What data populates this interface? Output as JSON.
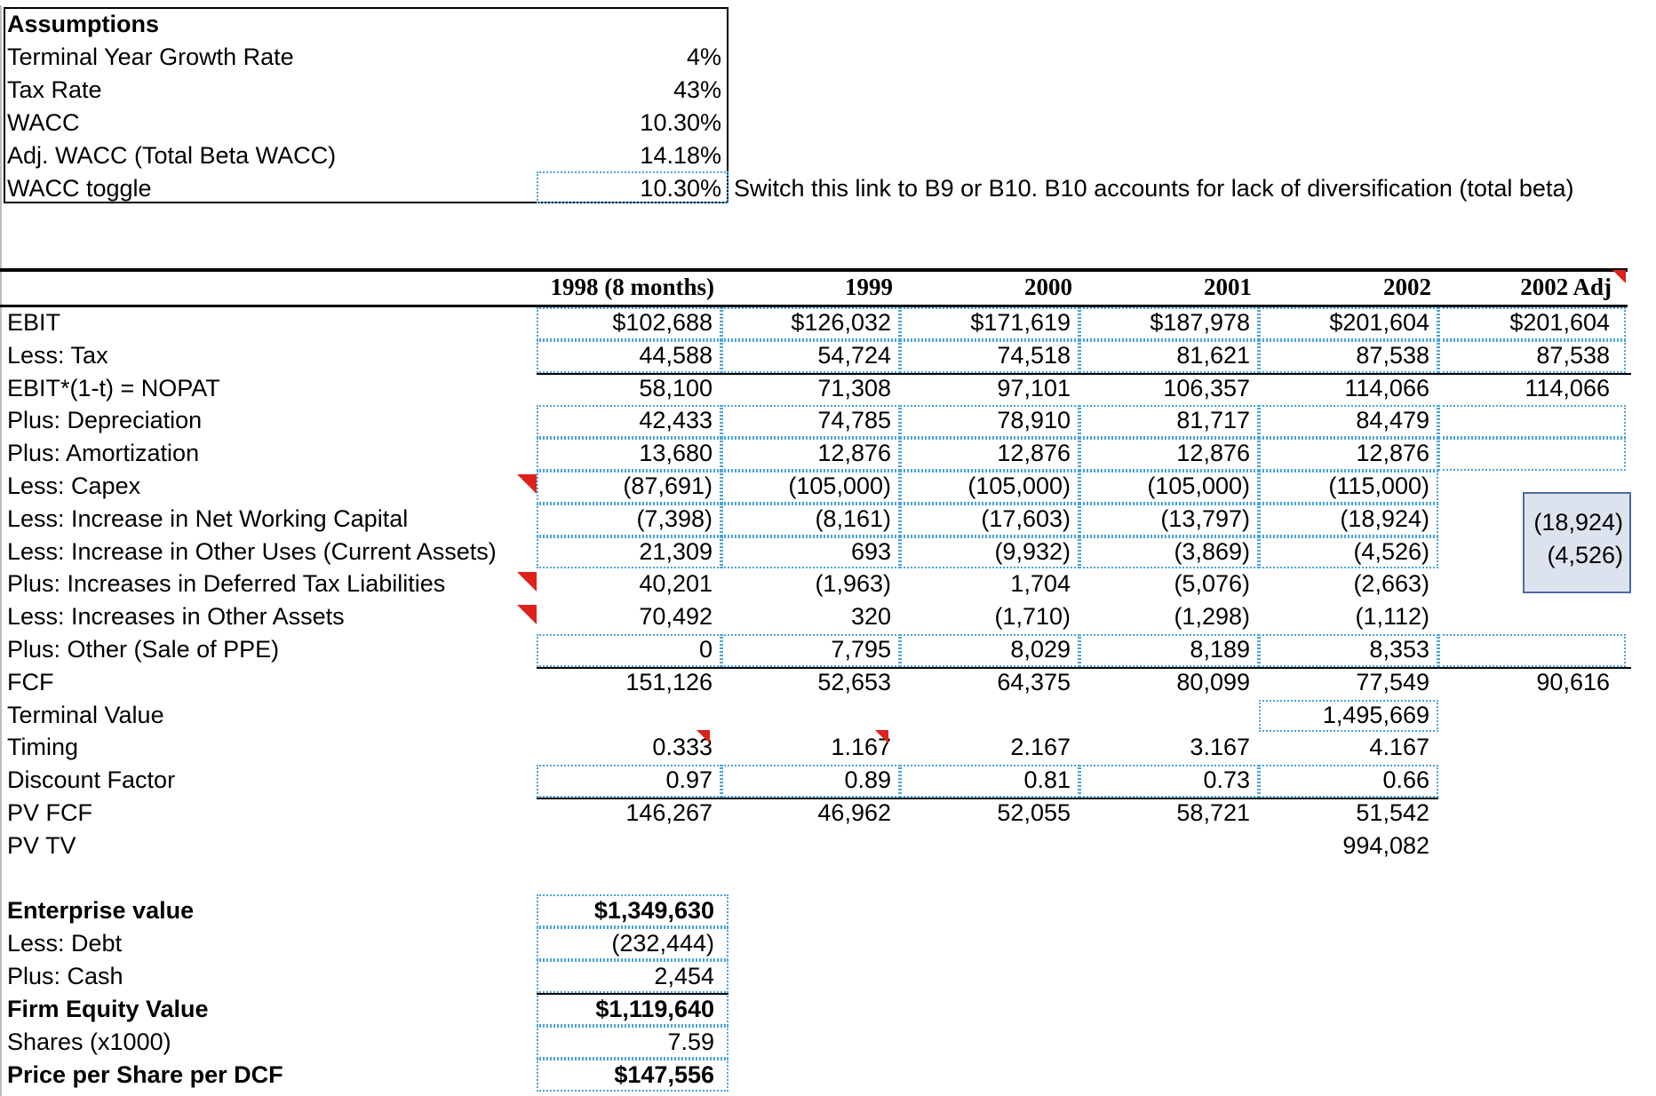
{
  "assumptions": {
    "title": "Assumptions",
    "rows": [
      {
        "label": "Terminal Year Growth Rate",
        "value": "4%"
      },
      {
        "label": "Tax Rate",
        "value": "43%"
      },
      {
        "label": "WACC",
        "value": "10.30%"
      },
      {
        "label": "Adj. WACC (Total Beta WACC)",
        "value": "14.18%"
      },
      {
        "label": "WACC toggle",
        "value": "10.30%"
      }
    ],
    "note": "Switch this link to B9 or B10. B10 accounts for lack of diversification (total beta)"
  },
  "dcf": {
    "headers": [
      "1998 (8 months)",
      "1999",
      "2000",
      "2001",
      "2002",
      "2002 Adj"
    ],
    "rows": [
      {
        "label": "EBIT",
        "values": [
          "$102,688",
          "$126,032",
          "$171,619",
          "$187,978",
          "$201,604",
          "$201,604"
        ]
      },
      {
        "label": "Less: Tax",
        "values": [
          "44,588",
          "54,724",
          "74,518",
          "81,621",
          "87,538",
          "87,538"
        ]
      },
      {
        "label": "EBIT*(1-t) = NOPAT",
        "values": [
          "58,100",
          "71,308",
          "97,101",
          "106,357",
          "114,066",
          "114,066"
        ]
      },
      {
        "label": "Plus: Depreciation",
        "values": [
          "42,433",
          "74,785",
          "78,910",
          "81,717",
          "84,479",
          ""
        ]
      },
      {
        "label": "Plus: Amortization",
        "values": [
          "13,680",
          "12,876",
          "12,876",
          "12,876",
          "12,876",
          ""
        ]
      },
      {
        "label": "Less: Capex",
        "values": [
          "(87,691)",
          "(105,000)",
          "(105,000)",
          "(105,000)",
          "(115,000)",
          ""
        ]
      },
      {
        "label": "Less: Increase in Net Working Capital",
        "values": [
          "(7,398)",
          "(8,161)",
          "(17,603)",
          "(13,797)",
          "(18,924)",
          "(18,924)"
        ]
      },
      {
        "label": "Less: Increase in Other Uses (Current Assets)",
        "values": [
          "21,309",
          "693",
          "(9,932)",
          "(3,869)",
          "(4,526)",
          "(4,526)"
        ]
      },
      {
        "label": "Plus: Increases in Deferred Tax Liabilities",
        "values": [
          "40,201",
          "(1,963)",
          "1,704",
          "(5,076)",
          "(2,663)",
          ""
        ]
      },
      {
        "label": "Less: Increases in Other Assets",
        "values": [
          "70,492",
          "320",
          "(1,710)",
          "(1,298)",
          "(1,112)",
          ""
        ]
      },
      {
        "label": "Plus: Other (Sale of PPE)",
        "values": [
          "0",
          "7,795",
          "8,029",
          "8,189",
          "8,353",
          ""
        ]
      },
      {
        "label": "FCF",
        "values": [
          "151,126",
          "52,653",
          "64,375",
          "80,099",
          "77,549",
          "90,616"
        ]
      },
      {
        "label": "Terminal Value",
        "values": [
          "",
          "",
          "",
          "",
          "1,495,669",
          ""
        ]
      },
      {
        "label": "Timing",
        "values": [
          "0.333",
          "1.167",
          "2.167",
          "3.167",
          "4.167",
          ""
        ]
      },
      {
        "label": "Discount Factor",
        "values": [
          "0.97",
          "0.89",
          "0.81",
          "0.73",
          "0.66",
          ""
        ]
      },
      {
        "label": "PV FCF",
        "values": [
          "146,267",
          "46,962",
          "52,055",
          "58,721",
          "51,542",
          ""
        ]
      },
      {
        "label": "PV TV",
        "values": [
          "",
          "",
          "",
          "",
          "994,082",
          ""
        ]
      }
    ]
  },
  "valuation": {
    "rows": [
      {
        "label": "Enterprise value",
        "value": "$1,349,630"
      },
      {
        "label": "Less: Debt",
        "value": "(232,444)"
      },
      {
        "label": "Plus: Cash",
        "value": "2,454"
      },
      {
        "label": "Firm Equity Value",
        "value": "$1,119,640"
      },
      {
        "label": "Shares (x1000)",
        "value": "7.59"
      },
      {
        "label": "Price per Share per DCF",
        "value": "$147,556"
      }
    ]
  },
  "colors": {
    "comment_marker": "#e0201a",
    "dotted_border": "#4aa3df",
    "selection_fill": "#dde3ee",
    "selection_border": "#4a6aa0"
  }
}
